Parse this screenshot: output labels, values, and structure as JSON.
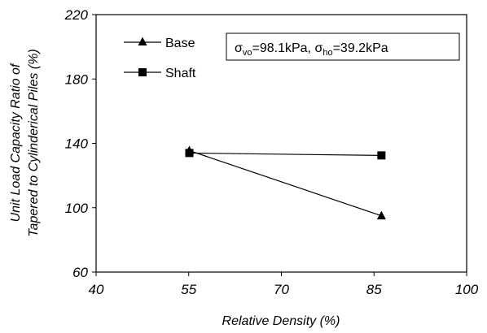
{
  "chart_data": {
    "type": "line",
    "xlabel": "Relative Density (%)",
    "ylabel_line1": "Unit Load Capacity Ratio of",
    "ylabel_line2": "Tapered to Cylinderical Piles (%)",
    "xlim": [
      40,
      100
    ],
    "ylim": [
      60,
      220
    ],
    "xticks": [
      40,
      55,
      70,
      85,
      100
    ],
    "yticks": [
      60,
      100,
      140,
      180,
      220
    ],
    "grid": false,
    "legend_position": "top-left",
    "series": [
      {
        "name": "Base",
        "marker": "triangle",
        "x": [
          55.1,
          86.2
        ],
        "y": [
          135.5,
          95
        ]
      },
      {
        "name": "Shaft",
        "marker": "square",
        "x": [
          55.1,
          86.2
        ],
        "y": [
          134,
          132.5
        ]
      }
    ],
    "annotation": {
      "sigma": "σ",
      "sub_v": "vo",
      "v_value": "=98.1kPa, ",
      "sub_h": "ho",
      "h_value": "=39.2kPa"
    }
  }
}
